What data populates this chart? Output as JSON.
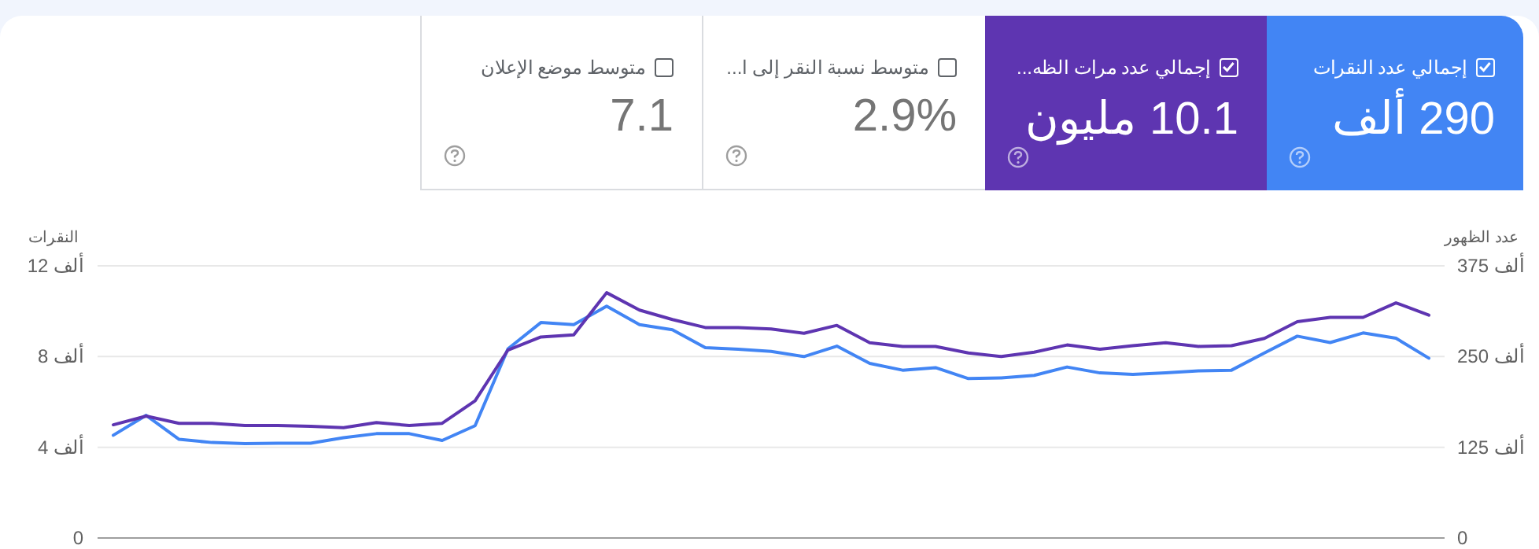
{
  "chart_data": [
    {
      "type": "other",
      "categories": [
        "إجمالي عدد النقرات",
        "إجمالي عدد مرات الظه...",
        "متوسط نسبة النقر إلى ا...",
        "متوسط موضع الإعلان"
      ],
      "value_labels": [
        "290 ألف",
        "10.1 مليون",
        "2.9%",
        "7.1"
      ],
      "colors": [
        "#4285f4",
        "#5e35b1",
        "#ffffff",
        "#ffffff"
      ]
    },
    {
      "type": "line",
      "categories": [
        null,
        null,
        null,
        null,
        null,
        null,
        null,
        null,
        null,
        null,
        null,
        null,
        null,
        null,
        null,
        null,
        null,
        null,
        null,
        null,
        null,
        null,
        null,
        null,
        null,
        null,
        null,
        null,
        null,
        null,
        null,
        null,
        null,
        null,
        null,
        null,
        null,
        null,
        null,
        null,
        null
      ],
      "ylabel": "النقرات",
      "y2label": "عدد الظهور",
      "ylim": [
        0,
        12
      ],
      "yticks": [
        0,
        {
          "value": 4,
          "label": "4 ألف"
        },
        {
          "value": 8,
          "label": "8 ألف"
        },
        {
          "value": 12,
          "label": "12 ألف"
        }
      ],
      "y2lim": [
        0,
        375
      ],
      "y2ticks": [
        0,
        {
          "value": 125,
          "label": "125 ألف"
        },
        {
          "value": 250,
          "label": "250 ألف"
        },
        {
          "value": 375,
          "label": "375 ألف"
        }
      ],
      "grid": "y",
      "marker": "none",
      "line_style": "solid",
      "series": [
        {
          "color": "#4285f4",
          "values": [
            4.53,
            5.41,
            4.35,
            4.21,
            4.16,
            4.18,
            4.18,
            4.42,
            4.6,
            4.6,
            4.3,
            4.95,
            8.34,
            9.5,
            9.41,
            10.22,
            9.41,
            9.18,
            8.39,
            8.32,
            8.23,
            8.0,
            8.46,
            7.7,
            7.4,
            7.51,
            7.03,
            7.06,
            7.17,
            7.54,
            7.28,
            7.21,
            7.28,
            7.37,
            7.4,
            8.16,
            8.9,
            8.62,
            9.04,
            8.81,
            7.93
          ]
        },
        {
          "color": "#5e35b1",
          "axis": "y2",
          "values": [
            156,
            168,
            158,
            158,
            155,
            155,
            154,
            152,
            159,
            155,
            158,
            189,
            259,
            277,
            280,
            338,
            314,
            301,
            290,
            290,
            288,
            282,
            293,
            269,
            264,
            264,
            255,
            250,
            256,
            266,
            260,
            265,
            269,
            264,
            265,
            275,
            298,
            304,
            304,
            324,
            307
          ]
        }
      ]
    }
  ]
}
